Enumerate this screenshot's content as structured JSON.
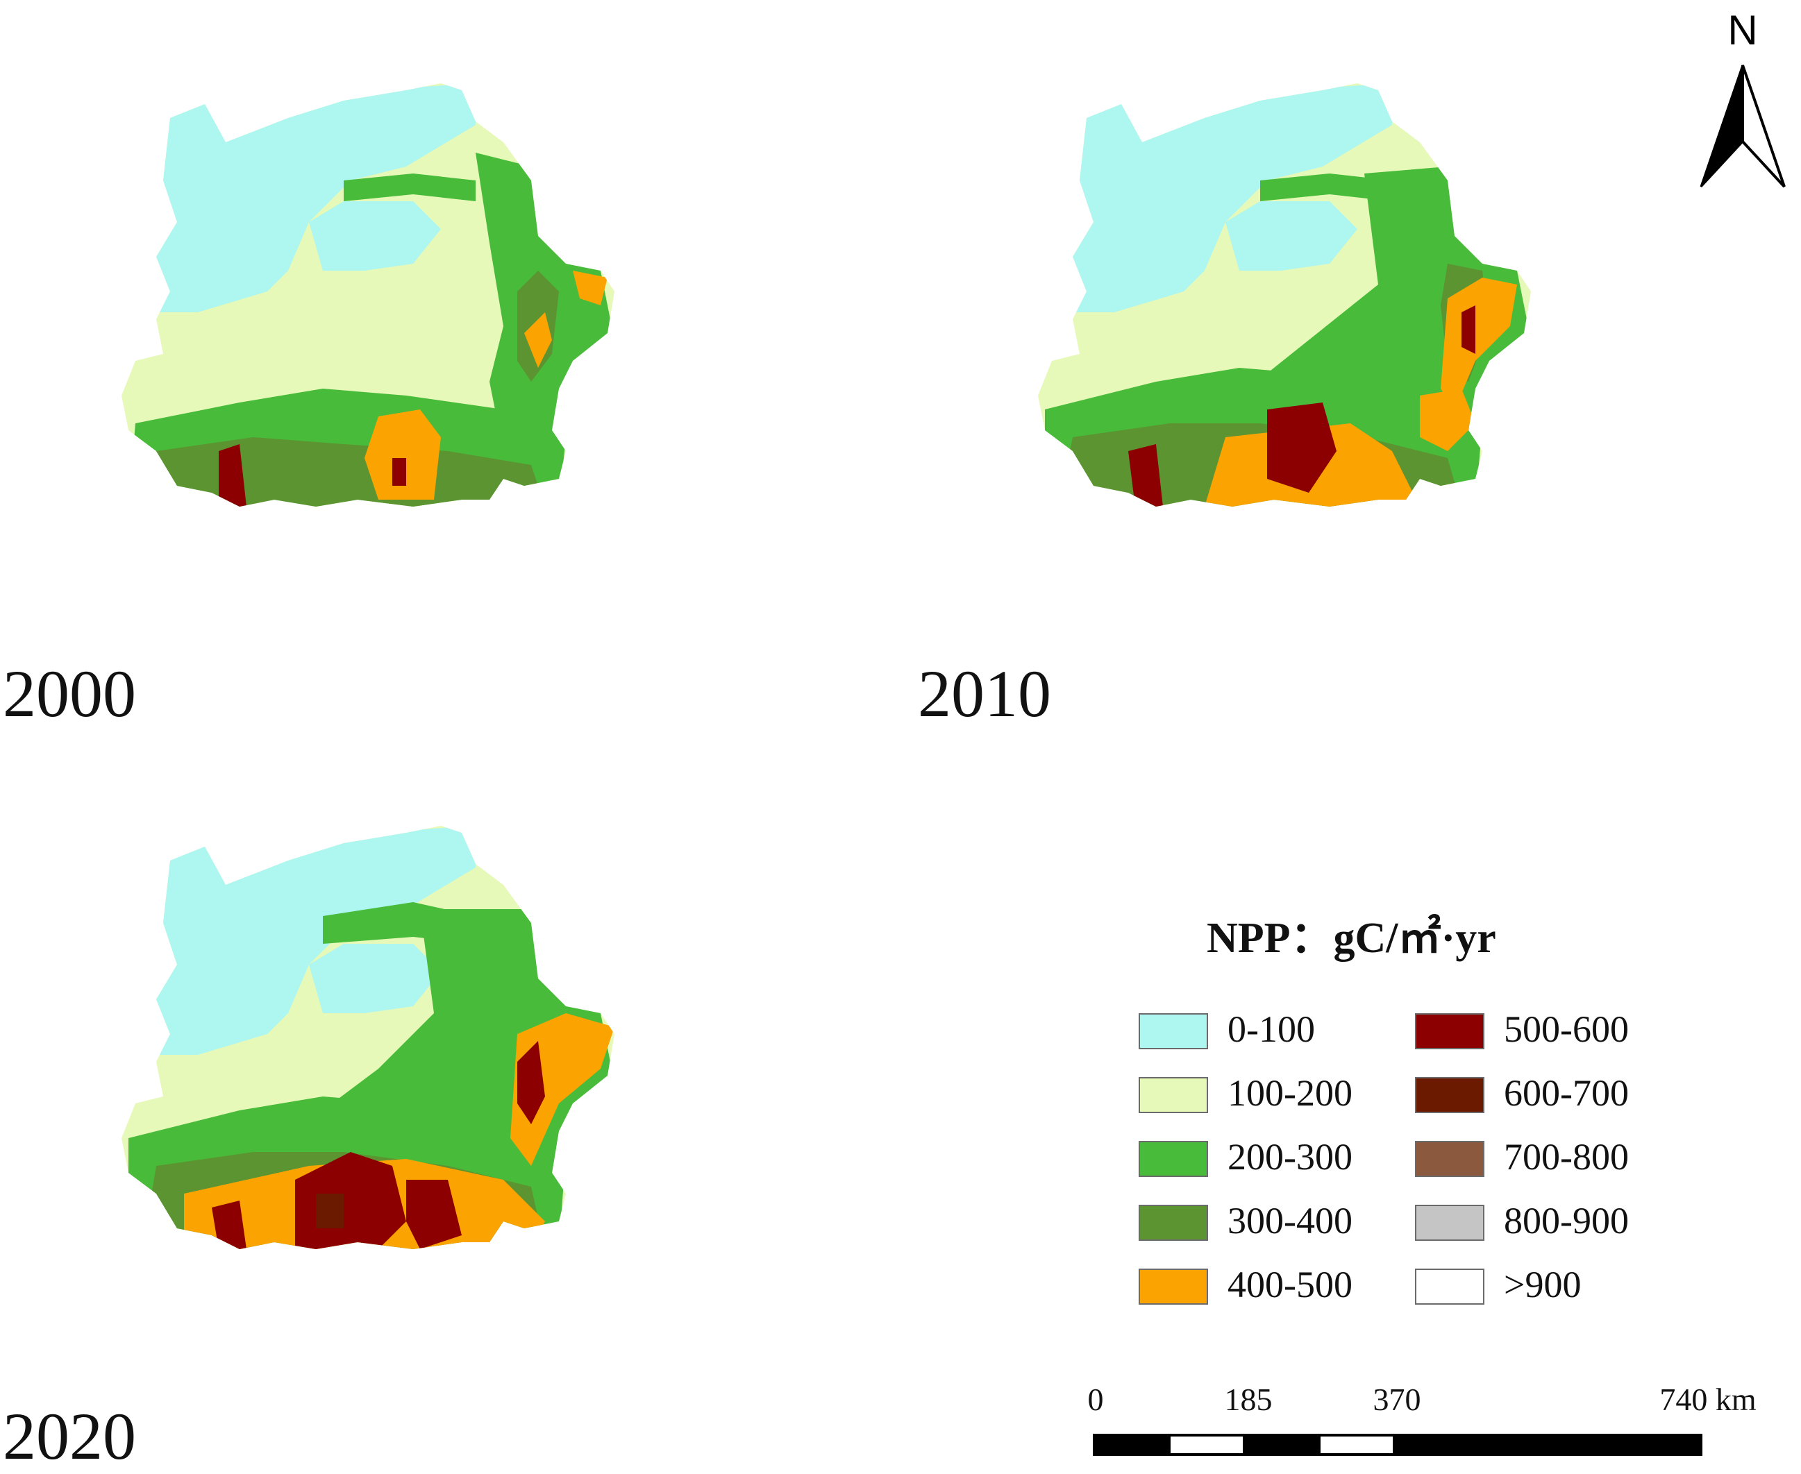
{
  "panels": [
    {
      "year": "2000"
    },
    {
      "year": "2010"
    },
    {
      "year": "2020"
    }
  ],
  "north_arrow": {
    "letter": "N"
  },
  "legend": {
    "title": "NPP：gC/㎡·yr",
    "classes": [
      {
        "label": "0-100",
        "color": "#aef6f0"
      },
      {
        "label": "100-200",
        "color": "#e6f9b8"
      },
      {
        "label": "200-300",
        "color": "#48bb3a"
      },
      {
        "label": "300-400",
        "color": "#5b9430"
      },
      {
        "label": "400-500",
        "color": "#fba300"
      },
      {
        "label": "500-600",
        "color": "#8c0001"
      },
      {
        "label": "600-700",
        "color": "#6b1a00"
      },
      {
        "label": "700-800",
        "color": "#8b5a3e"
      },
      {
        "label": "800-900",
        "color": "#c5c5c5"
      },
      {
        "label": ">900",
        "color": "#ffffff"
      }
    ]
  },
  "scale_bar": {
    "labels": [
      "0",
      "185",
      "370",
      "740 km"
    ]
  }
}
